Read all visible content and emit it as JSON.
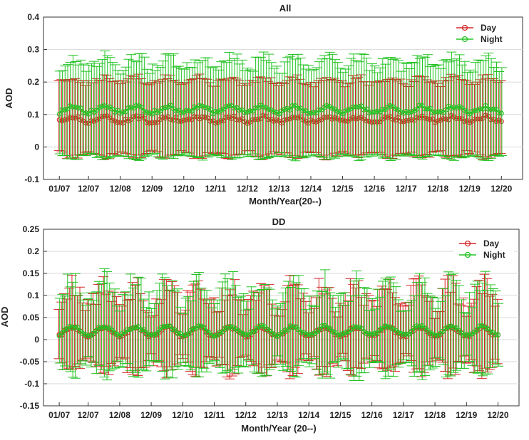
{
  "chart_data": [
    {
      "type": "line",
      "title": "All",
      "xlabel": "Month/Year(20--)",
      "ylabel": "AOD",
      "ylim": [
        -0.1,
        0.4
      ],
      "yticks": [
        "-0.1",
        "0",
        "0.1",
        "0.2",
        "0.3",
        "0.4"
      ],
      "ytick_values": [
        -0.1,
        0,
        0.1,
        0.2,
        0.3,
        0.4
      ],
      "xticks": [
        "01/07",
        "12/07",
        "12/08",
        "12/09",
        "12/10",
        "12/11",
        "12/12",
        "12/13",
        "12/14",
        "12/15",
        "12/16",
        "12/17",
        "12/18",
        "12/19",
        "12/20"
      ],
      "xtick_months": [
        1,
        12,
        24,
        36,
        48,
        60,
        72,
        84,
        96,
        108,
        120,
        132,
        144,
        156,
        168
      ],
      "month_range": [
        -5,
        176
      ],
      "n_months": 168,
      "grid": "horizontal",
      "legend_position": "top-right",
      "series": [
        {
          "name": "Day",
          "color": "#d62728",
          "mean": 0.085,
          "amplitude": 0.007,
          "noise": 0.006,
          "upper": 0.205,
          "upper_spread": 0.02,
          "lower": -0.025,
          "lower_spread": 0.015
        },
        {
          "name": "Night",
          "color": "#22c322",
          "mean": 0.115,
          "amplitude": 0.009,
          "noise": 0.006,
          "upper": 0.26,
          "upper_spread": 0.035,
          "lower": -0.03,
          "lower_spread": 0.012
        }
      ]
    },
    {
      "type": "line",
      "title": "DD",
      "xlabel": "Month/Year (20--)",
      "ylabel": "AOD",
      "ylim": [
        -0.15,
        0.25
      ],
      "yticks": [
        "-0.15",
        "-0.1",
        "-0.05",
        "0",
        "0.05",
        "0.1",
        "0.15",
        "0.2",
        "0.25"
      ],
      "ytick_values": [
        -0.15,
        -0.1,
        -0.05,
        0,
        0.05,
        0.1,
        0.15,
        0.2,
        0.25
      ],
      "xticks": [
        "01/07",
        "12/07",
        "12/08",
        "12/09",
        "12/10",
        "12/11",
        "12/12",
        "12/13",
        "12/14",
        "12/15",
        "12/16",
        "12/17",
        "12/18",
        "12/19",
        "12/20"
      ],
      "xtick_months": [
        1,
        12,
        24,
        36,
        48,
        60,
        72,
        84,
        96,
        108,
        120,
        132,
        144,
        156,
        168
      ],
      "month_range": [
        -5,
        176
      ],
      "n_months": 168,
      "grid": "horizontal",
      "legend_position": "top-right",
      "series": [
        {
          "name": "Day",
          "color": "#d62728",
          "mean": 0.018,
          "amplitude": 0.01,
          "noise": 0.003,
          "upper": 0.1,
          "upper_spread": 0.05,
          "lower": -0.06,
          "lower_spread": 0.03
        },
        {
          "name": "Night",
          "color": "#22c322",
          "mean": 0.02,
          "amplitude": 0.01,
          "noise": 0.003,
          "upper": 0.11,
          "upper_spread": 0.05,
          "lower": -0.065,
          "lower_spread": 0.03
        }
      ]
    }
  ]
}
